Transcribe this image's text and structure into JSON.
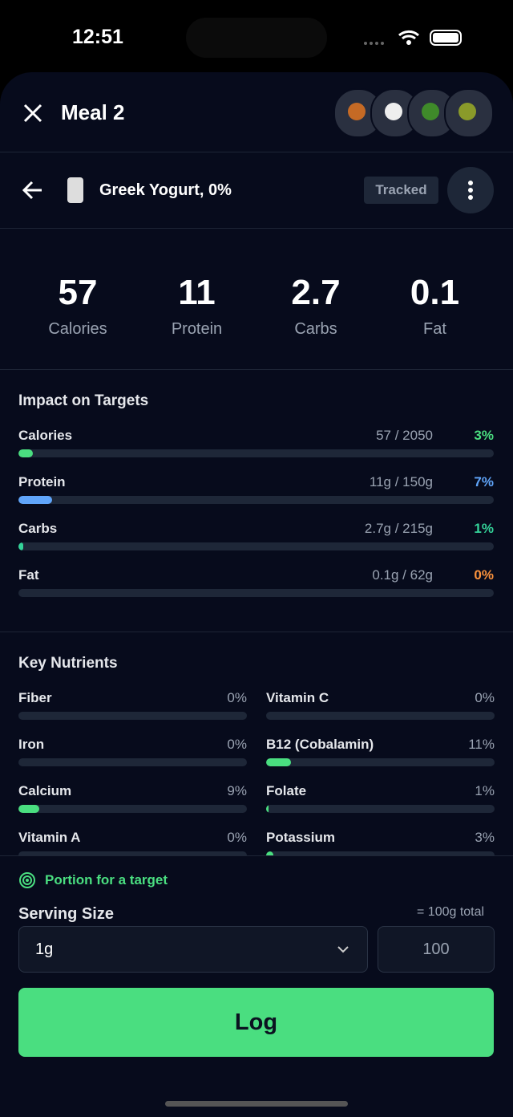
{
  "status_bar": {
    "time": "12:51"
  },
  "header": {
    "title": "Meal 2"
  },
  "food": {
    "name": "Greek Yogurt, 0%",
    "badge": "Tracked"
  },
  "summary": [
    {
      "value": 57,
      "label": "Calories"
    },
    {
      "value": 11,
      "label": "Protein"
    },
    {
      "value": 2.7,
      "label": "Carbs"
    },
    {
      "value": 0.1,
      "label": "Fat"
    }
  ],
  "impact": {
    "title": "Impact on Targets",
    "rows": [
      {
        "name": "Calories",
        "amount": "57 / 2050",
        "percent": {
          "value": 3,
          "label": "3%"
        },
        "color": "#4ade80"
      },
      {
        "name": "Protein",
        "amount": "11g / 150g",
        "percent": {
          "value": 7,
          "label": "7%"
        },
        "color": "#60a5fa"
      },
      {
        "name": "Carbs",
        "amount": "2.7g / 215g",
        "percent": {
          "value": 1,
          "label": "1%"
        },
        "color": "#34d399"
      },
      {
        "name": "Fat",
        "amount": "0.1g / 62g",
        "percent": {
          "value": 0,
          "label": "0%"
        },
        "color": "#fb923c"
      }
    ]
  },
  "nutrients": {
    "title": "Key Nutrients",
    "items": [
      {
        "name": "Fiber",
        "percent": {
          "value": 0,
          "label": "0%"
        }
      },
      {
        "name": "Vitamin C",
        "percent": {
          "value": 0,
          "label": "0%"
        }
      },
      {
        "name": "Iron",
        "percent": {
          "value": 0,
          "label": "0%"
        }
      },
      {
        "name": "B12 (Cobalamin)",
        "percent": {
          "value": 11,
          "label": "11%"
        }
      },
      {
        "name": "Calcium",
        "percent": {
          "value": 9,
          "label": "9%"
        }
      },
      {
        "name": "Folate",
        "percent": {
          "value": 1,
          "label": "1%"
        }
      },
      {
        "name": "Vitamin A",
        "percent": {
          "value": 0,
          "label": "0%"
        }
      },
      {
        "name": "Potassium",
        "percent": {
          "value": 3,
          "label": "3%"
        }
      }
    ]
  },
  "portion": {
    "link": "Portion for a target",
    "serving_label": "Serving Size",
    "total": "= 100g total",
    "unit": "1g",
    "amount": "100",
    "button": "Log"
  }
}
